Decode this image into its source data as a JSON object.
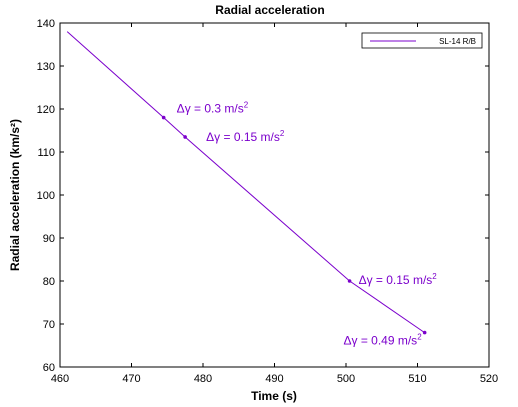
{
  "chart_data": {
    "type": "line",
    "title": "Radial acceleration",
    "xlabel": "Time (s)",
    "ylabel": "Radial acceleration (km/s²)",
    "xlim": [
      460,
      520
    ],
    "ylim": [
      60,
      140
    ],
    "xticks": [
      460,
      470,
      480,
      490,
      500,
      510,
      520
    ],
    "yticks": [
      60,
      70,
      80,
      90,
      100,
      110,
      120,
      130,
      140
    ],
    "grid": false,
    "legend_position": "top-right",
    "series": [
      {
        "name": "SL-14 R/B",
        "color": "#7B00CC",
        "x": [
          461,
          474.5,
          477.5,
          500.5,
          511
        ],
        "y": [
          138,
          118,
          113.5,
          80,
          68
        ]
      }
    ],
    "markers": [
      {
        "x": 474.5,
        "y": 118,
        "label_prefix": "Δγ = 0.3 m/s",
        "label_sup": "2"
      },
      {
        "x": 477.5,
        "y": 113.5,
        "label_prefix": "Δγ = 0.15 m/s",
        "label_sup": "2"
      },
      {
        "x": 500.5,
        "y": 80,
        "label_prefix": "Δγ = 0.15 m/s",
        "label_sup": "2"
      },
      {
        "x": 511,
        "y": 68,
        "label_prefix": "Δγ = 0.49 m/s",
        "label_sup": "2"
      }
    ]
  }
}
